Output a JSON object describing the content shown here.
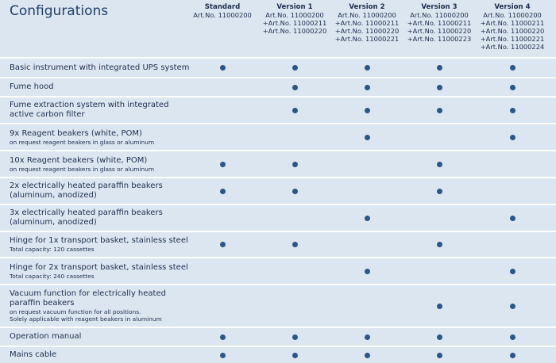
{
  "header": {
    "title": "Configurations",
    "columns": [
      {
        "name": "Standard",
        "art_numbers": [
          "Art.No. 11000200"
        ]
      },
      {
        "name": "Version 1",
        "art_numbers": [
          "Art.No. 11000200",
          "+Art.No. 11000211",
          "+Art.No. 11000220"
        ]
      },
      {
        "name": "Version 2",
        "art_numbers": [
          "Art.No. 11000200",
          "+Art.No. 11000211",
          "+Art.No. 11000220",
          "+Art.No. 11000221"
        ]
      },
      {
        "name": "Version 3",
        "art_numbers": [
          "Art.No. 11000200",
          "+Art.No. 11000211",
          "+Art.No. 11000220",
          "+Art.No. 11000223"
        ]
      },
      {
        "name": "Version 4",
        "art_numbers": [
          "Art.No. 11000200",
          "+Art.No. 11000211",
          "+Art.No. 11000220",
          "+Art.No. 11000221",
          "+Art.No. 11000224"
        ]
      }
    ]
  },
  "rows": [
    {
      "label": [
        "Basic instrument with integrated UPS system"
      ],
      "included": [
        true,
        true,
        true,
        true,
        true
      ]
    },
    {
      "label": [
        "Fume hood"
      ],
      "included": [
        false,
        true,
        true,
        true,
        true
      ]
    },
    {
      "label": [
        "Fume extraction system with integrated",
        "active carbon filter"
      ],
      "included": [
        false,
        true,
        true,
        true,
        true
      ]
    },
    {
      "label": [
        "9x Reagent beakers (white, POM)"
      ],
      "note": [
        "on request reagent beakers in glass or aluminum"
      ],
      "included": [
        false,
        false,
        true,
        false,
        true
      ]
    },
    {
      "label": [
        "10x Reagent beakers (white, POM)"
      ],
      "note": [
        "on request reagent beakers in glass or aluminum"
      ],
      "included": [
        true,
        true,
        false,
        true,
        false
      ]
    },
    {
      "label": [
        "2x electrically heated paraffin beakers",
        "(aluminum, anodized)"
      ],
      "included": [
        true,
        true,
        false,
        true,
        false
      ]
    },
    {
      "label": [
        "3x electrically heated paraffin beakers",
        "(aluminum, anodized)"
      ],
      "included": [
        false,
        false,
        true,
        false,
        true
      ]
    },
    {
      "label": [
        "Hinge for 1x transport basket, stainless steel"
      ],
      "note": [
        "Total capacity: 120 cassettes"
      ],
      "included": [
        true,
        true,
        false,
        true,
        false
      ]
    },
    {
      "label": [
        "Hinge for 2x transport basket, stainless steel"
      ],
      "note": [
        "Total capacity: 240 cassettes"
      ],
      "included": [
        false,
        false,
        true,
        false,
        true
      ]
    },
    {
      "label": [
        "Vacuum function for electrically heated",
        "paraffin beakers"
      ],
      "note": [
        "on request vacuum function for all positions.",
        "Solely applicable with reagent beakers in aluminum"
      ],
      "included": [
        false,
        false,
        false,
        true,
        true
      ]
    },
    {
      "label": [
        "Operation manual"
      ],
      "included": [
        true,
        true,
        true,
        true,
        true
      ]
    },
    {
      "label": [
        "Mains cable"
      ],
      "included": [
        true,
        true,
        true,
        true,
        true
      ]
    }
  ]
}
